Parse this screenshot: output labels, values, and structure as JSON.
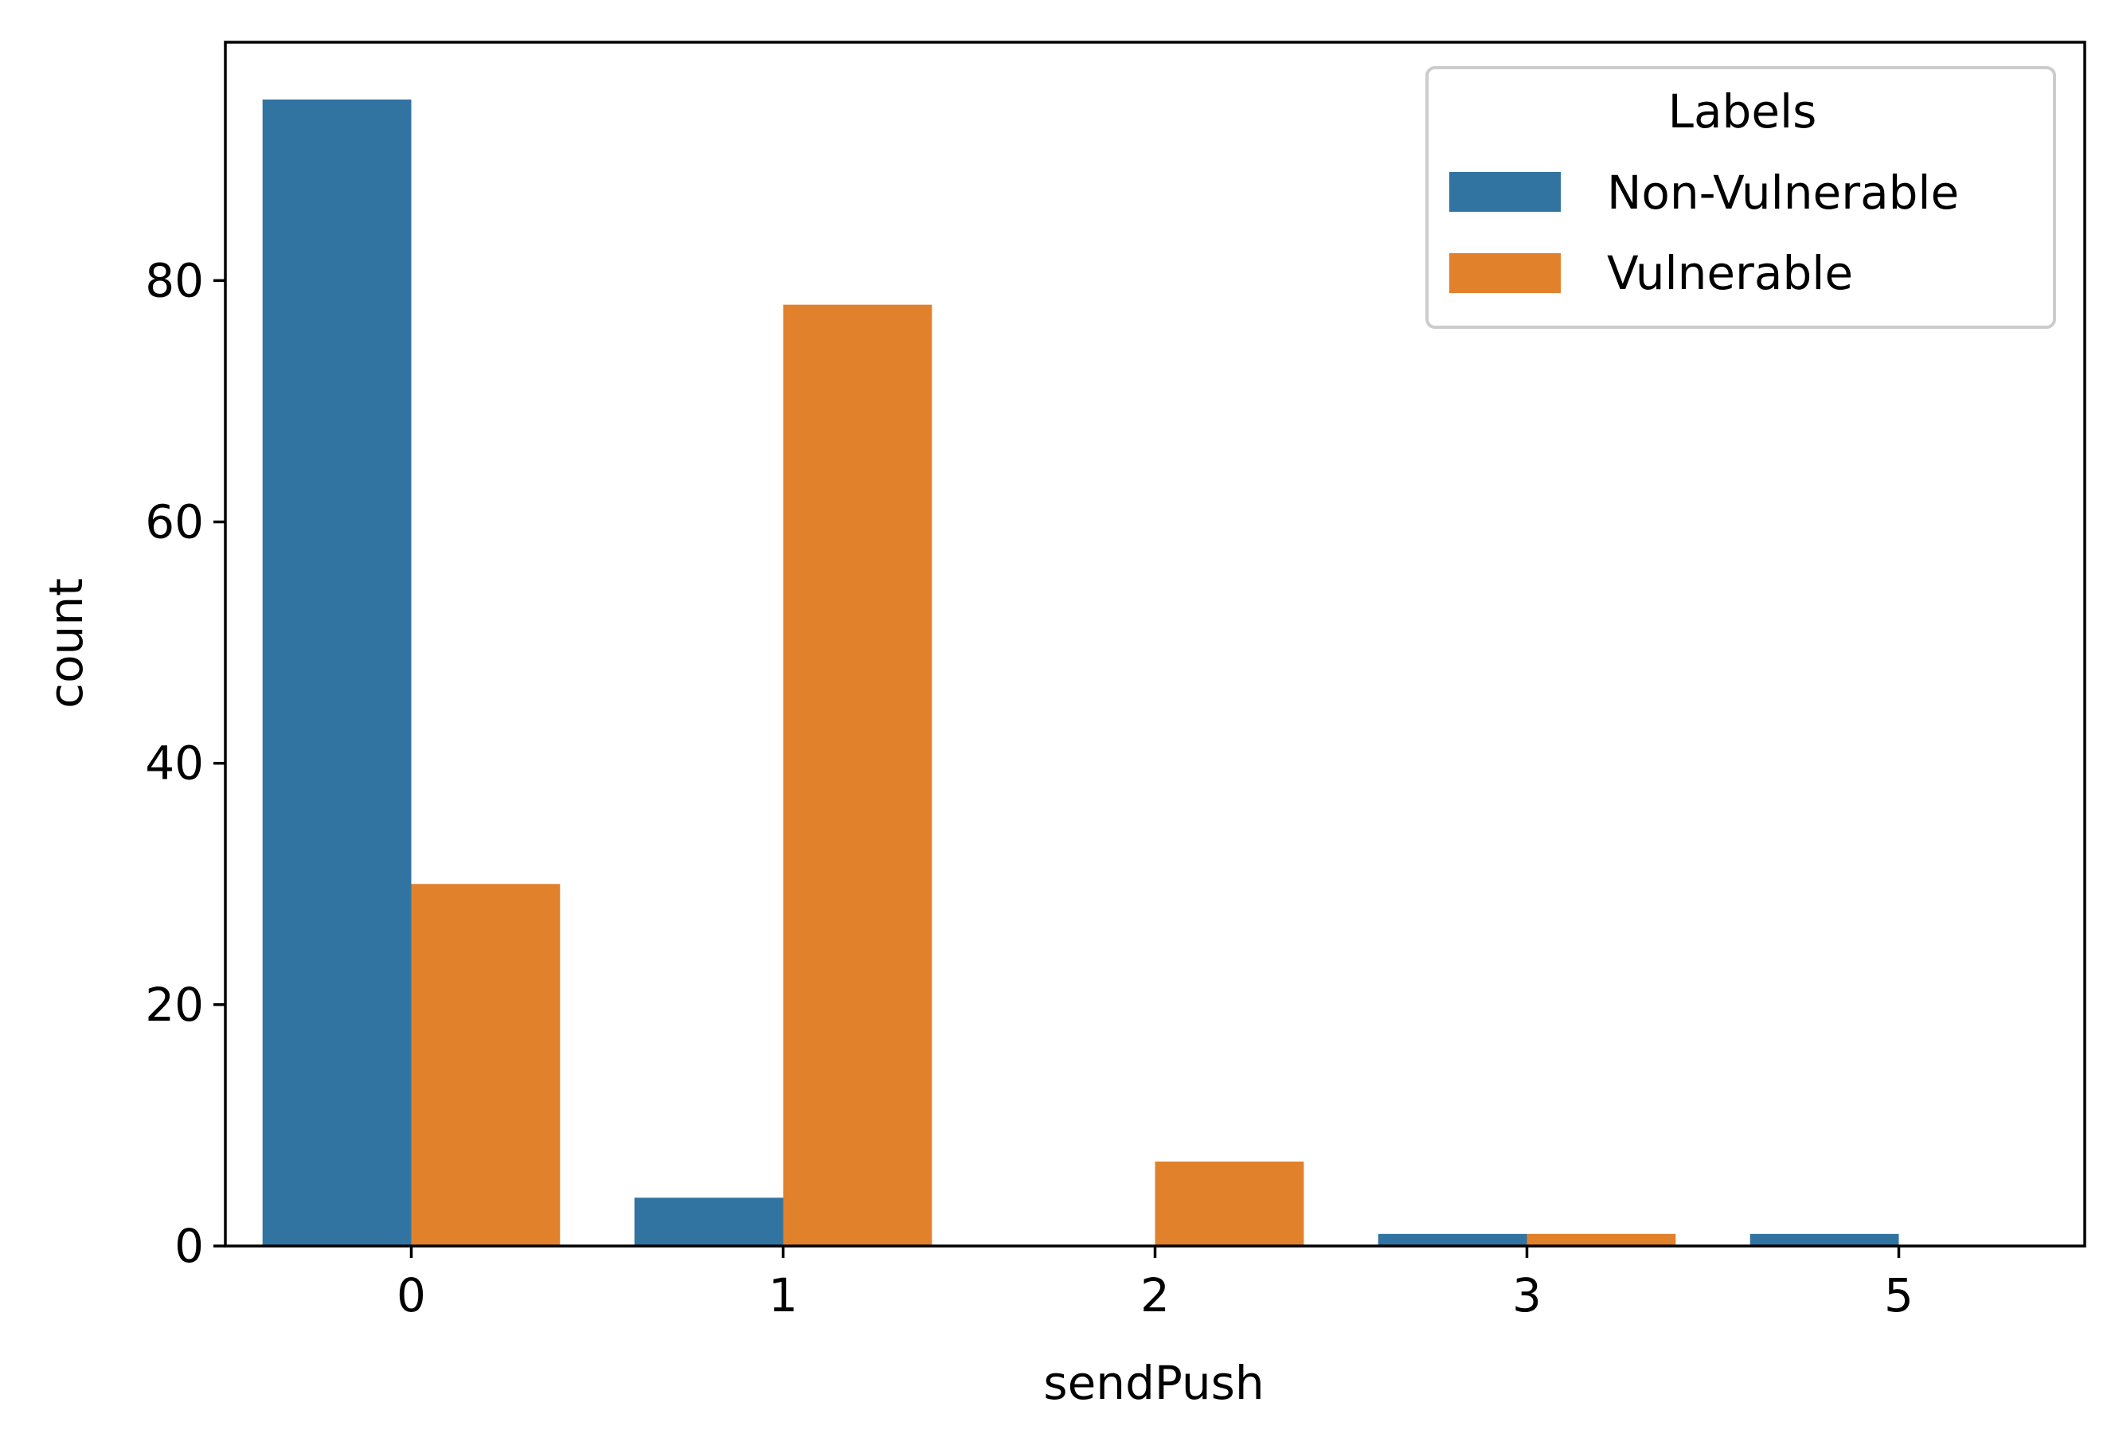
{
  "chart_data": {
    "type": "bar",
    "title": "",
    "xlabel": "sendPush",
    "ylabel": "count",
    "categories": [
      "0",
      "1",
      "2",
      "3",
      "5"
    ],
    "series": [
      {
        "name": "Non-Vulnerable",
        "color": "#3274a1",
        "values": [
          95,
          4,
          0,
          1,
          1
        ]
      },
      {
        "name": "Vulnerable",
        "color": "#e1812c",
        "values": [
          30,
          78,
          7,
          1,
          0
        ]
      }
    ],
    "ylim": [
      0,
      99.75
    ],
    "yticks": [
      0,
      20,
      40,
      60,
      80
    ],
    "grid": false,
    "legend": {
      "title": "Labels",
      "position": "top-right"
    }
  }
}
